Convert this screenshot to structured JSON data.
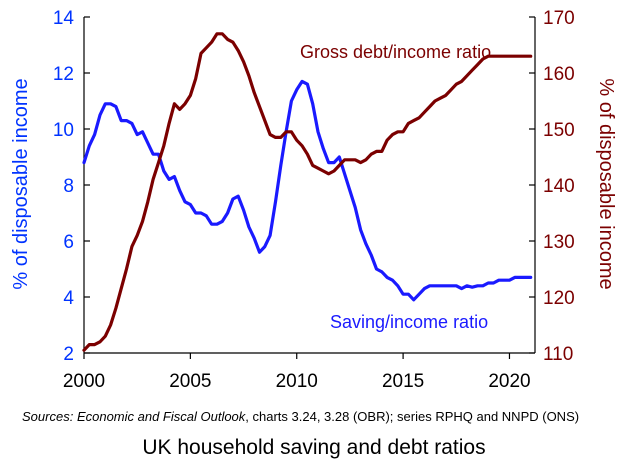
{
  "chart_data": {
    "type": "line",
    "x_label": "",
    "xlim": [
      2000,
      2021.2
    ],
    "x_ticks": [
      2000,
      2005,
      2010,
      2015,
      2020
    ],
    "left_axis": {
      "label": "% of disposable income",
      "ylim": [
        2,
        14
      ],
      "ticks": [
        2,
        4,
        6,
        8,
        10,
        12,
        14
      ],
      "color": "#0033FF"
    },
    "right_axis": {
      "label": "% of disposable income",
      "ylim": [
        110,
        170
      ],
      "ticks": [
        110,
        120,
        130,
        140,
        150,
        160,
        170
      ],
      "color": "#7B0000"
    },
    "grid": false,
    "series": [
      {
        "name": "Saving/income ratio",
        "axis": "left",
        "color": "#1A1AFF",
        "x": [
          2000.0,
          2000.25,
          2000.5,
          2000.75,
          2001.0,
          2001.25,
          2001.5,
          2001.75,
          2002.0,
          2002.25,
          2002.5,
          2002.75,
          2003.0,
          2003.25,
          2003.5,
          2003.75,
          2004.0,
          2004.25,
          2004.5,
          2004.75,
          2005.0,
          2005.25,
          2005.5,
          2005.75,
          2006.0,
          2006.25,
          2006.5,
          2006.75,
          2007.0,
          2007.25,
          2007.5,
          2007.75,
          2008.0,
          2008.25,
          2008.5,
          2008.75,
          2009.0,
          2009.25,
          2009.5,
          2009.75,
          2010.0,
          2010.25,
          2010.5,
          2010.75,
          2011.0,
          2011.25,
          2011.5,
          2011.75,
          2012.0,
          2012.25,
          2012.5,
          2012.75,
          2013.0,
          2013.25,
          2013.5,
          2013.75,
          2014.0,
          2014.25,
          2014.5,
          2014.75,
          2015.0,
          2015.25,
          2015.5,
          2015.75,
          2016.0,
          2016.25,
          2016.5,
          2016.75,
          2017.0,
          2017.25,
          2017.5,
          2017.75,
          2018.0,
          2018.25,
          2018.5,
          2018.75,
          2019.0,
          2019.25,
          2019.5,
          2019.75,
          2020.0,
          2020.25,
          2020.5,
          2020.75,
          2021.0
        ],
        "values": [
          8.8,
          9.4,
          9.8,
          10.5,
          10.9,
          10.9,
          10.8,
          10.3,
          10.3,
          10.2,
          9.8,
          9.9,
          9.5,
          9.1,
          9.1,
          8.5,
          8.2,
          8.3,
          7.8,
          7.4,
          7.3,
          7.0,
          7.0,
          6.9,
          6.6,
          6.6,
          6.7,
          7.0,
          7.5,
          7.6,
          7.1,
          6.5,
          6.1,
          5.6,
          5.8,
          6.2,
          7.4,
          8.7,
          9.9,
          11.0,
          11.4,
          11.7,
          11.6,
          10.9,
          9.9,
          9.3,
          8.8,
          8.8,
          9.0,
          8.4,
          7.8,
          7.2,
          6.4,
          5.9,
          5.5,
          5.0,
          4.9,
          4.7,
          4.6,
          4.4,
          4.1,
          4.1,
          3.9,
          4.1,
          4.3,
          4.4,
          4.4,
          4.4,
          4.4,
          4.4,
          4.4,
          4.3,
          4.4,
          4.35,
          4.4,
          4.4,
          4.5,
          4.5,
          4.6,
          4.6,
          4.6,
          4.7,
          4.7,
          4.7,
          4.7
        ]
      },
      {
        "name": "Gross debt/income ratio",
        "axis": "right",
        "color": "#7B0000",
        "x": [
          2000.0,
          2000.25,
          2000.5,
          2000.75,
          2001.0,
          2001.25,
          2001.5,
          2001.75,
          2002.0,
          2002.25,
          2002.5,
          2002.75,
          2003.0,
          2003.25,
          2003.5,
          2003.75,
          2004.0,
          2004.25,
          2004.5,
          2004.75,
          2005.0,
          2005.25,
          2005.5,
          2005.75,
          2006.0,
          2006.25,
          2006.5,
          2006.75,
          2007.0,
          2007.25,
          2007.5,
          2007.75,
          2008.0,
          2008.25,
          2008.5,
          2008.75,
          2009.0,
          2009.25,
          2009.5,
          2009.75,
          2010.0,
          2010.25,
          2010.5,
          2010.75,
          2011.0,
          2011.25,
          2011.5,
          2011.75,
          2012.0,
          2012.25,
          2012.5,
          2012.75,
          2013.0,
          2013.25,
          2013.5,
          2013.75,
          2014.0,
          2014.25,
          2014.5,
          2014.75,
          2015.0,
          2015.25,
          2015.5,
          2015.75,
          2016.0,
          2016.25,
          2016.5,
          2016.75,
          2017.0,
          2017.25,
          2017.5,
          2017.75,
          2018.0,
          2018.25,
          2018.5,
          2018.75,
          2019.0,
          2019.25,
          2019.5,
          2019.75,
          2020.0,
          2020.25,
          2020.5,
          2020.75,
          2021.0
        ],
        "values": [
          110.5,
          111.5,
          111.5,
          112.0,
          113.0,
          115.0,
          118.0,
          121.5,
          125.0,
          129.0,
          131.0,
          133.5,
          137.0,
          141.0,
          144.0,
          147.0,
          151.0,
          154.5,
          153.5,
          154.5,
          156.0,
          159.0,
          163.5,
          164.5,
          165.5,
          167.0,
          167.0,
          166.0,
          165.5,
          164.0,
          162.0,
          159.5,
          156.5,
          154.0,
          151.5,
          149.0,
          148.5,
          148.5,
          149.5,
          149.5,
          148.0,
          147.0,
          145.5,
          143.5,
          143.0,
          142.5,
          142.0,
          142.5,
          143.5,
          144.5,
          144.5,
          144.5,
          144.0,
          144.5,
          145.5,
          146.0,
          146.0,
          148.0,
          149.0,
          149.5,
          149.5,
          151.0,
          151.5,
          152.0,
          153.0,
          154.0,
          155.0,
          155.5,
          156.0,
          157.0,
          158.0,
          158.5,
          159.5,
          160.5,
          161.5,
          162.5,
          163.0,
          163.0,
          163.0,
          163.0,
          163.0,
          163.0,
          163.0,
          163.0,
          163.0
        ]
      }
    ]
  },
  "source": {
    "prefix": "Sources:",
    "publication": "Economic and Fiscal Outlook",
    "rest": ", charts 3.24, 3.28 (OBR); series RPHQ and NNPD (ONS)"
  },
  "caption": "UK household saving and debt ratios"
}
